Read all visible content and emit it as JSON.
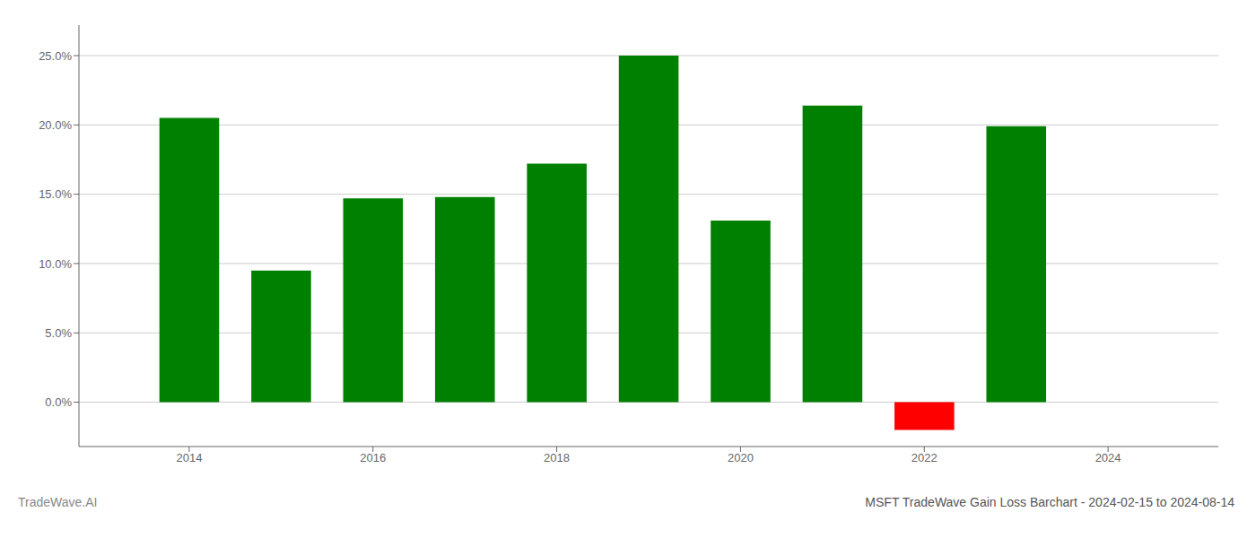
{
  "chart_data": {
    "type": "bar",
    "title": "MSFT TradeWave Gain Loss Barchart - 2024-02-15 to 2024-08-14",
    "annotations": [
      "TradeWave.AI"
    ],
    "x": [
      2014,
      2015,
      2016,
      2017,
      2018,
      2019,
      2020,
      2021,
      2022,
      2023
    ],
    "values": [
      0.205,
      0.095,
      0.147,
      0.148,
      0.172,
      0.25,
      0.131,
      0.214,
      -0.02,
      0.199
    ],
    "colors": [
      "#008000",
      "#008000",
      "#008000",
      "#008000",
      "#008000",
      "#008000",
      "#008000",
      "#008000",
      "#ff0000",
      "#008000"
    ],
    "xlim": [
      2012.8,
      2025.2
    ],
    "xticks": [
      2014,
      2016,
      2018,
      2020,
      2022,
      2024
    ],
    "ylim": [
      -0.032,
      0.272
    ],
    "yticks": [
      {
        "value": 0.0,
        "label": "0.0%"
      },
      {
        "value": 0.05,
        "label": "5.0%"
      },
      {
        "value": 0.1,
        "label": "10.0%"
      },
      {
        "value": 0.15,
        "label": "15.0%"
      },
      {
        "value": 0.2,
        "label": "20.0%"
      },
      {
        "value": 0.25,
        "label": "25.0%"
      }
    ],
    "grid": true
  }
}
